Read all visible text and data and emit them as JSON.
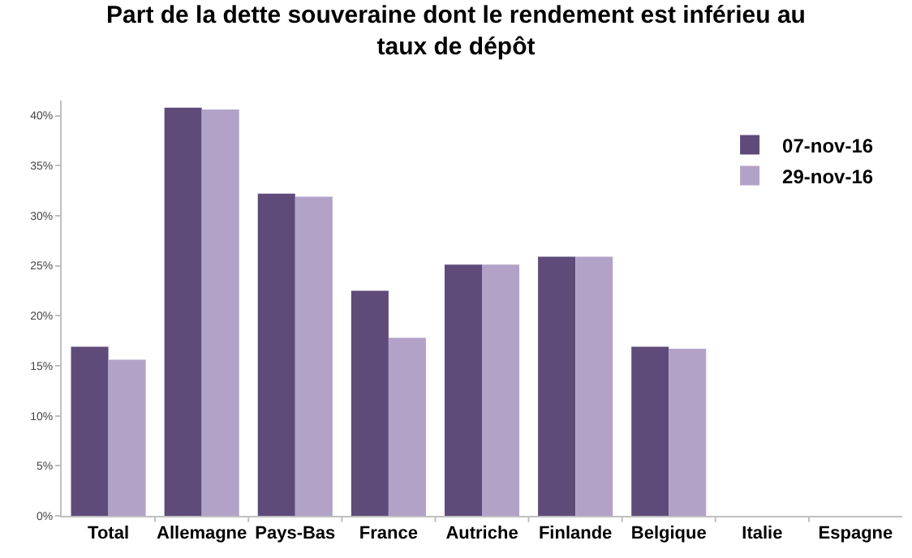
{
  "chart_data": {
    "type": "bar",
    "title": "Part de la dette souveraine dont le rendement est inférieu au taux de dépôt",
    "categories": [
      "Total",
      "Allemagne",
      "Pays-Bas",
      "France",
      "Autriche",
      "Finlande",
      "Belgique",
      "Italie",
      "Espagne"
    ],
    "series": [
      {
        "name": "07-nov-16",
        "color": "#5f4b7a",
        "values": [
          16.9,
          40.8,
          32.2,
          22.5,
          25.1,
          25.9,
          16.9,
          0,
          0
        ]
      },
      {
        "name": "29-nov-16",
        "color": "#b3a2c8",
        "values": [
          15.6,
          40.6,
          31.9,
          17.8,
          25.1,
          25.9,
          16.7,
          0,
          0
        ]
      }
    ],
    "ylim": [
      0,
      41.5
    ],
    "yticks": [
      {
        "value": 0,
        "label": "0%"
      },
      {
        "value": 5,
        "label": "5%"
      },
      {
        "value": 10,
        "label": "10%"
      },
      {
        "value": 15,
        "label": "15%"
      },
      {
        "value": 20,
        "label": "20%"
      },
      {
        "value": 25,
        "label": "25%"
      },
      {
        "value": 30,
        "label": "30%"
      },
      {
        "value": 35,
        "label": "35%"
      },
      {
        "value": 40,
        "label": "40%"
      }
    ],
    "grid": false,
    "legend": "top right"
  }
}
